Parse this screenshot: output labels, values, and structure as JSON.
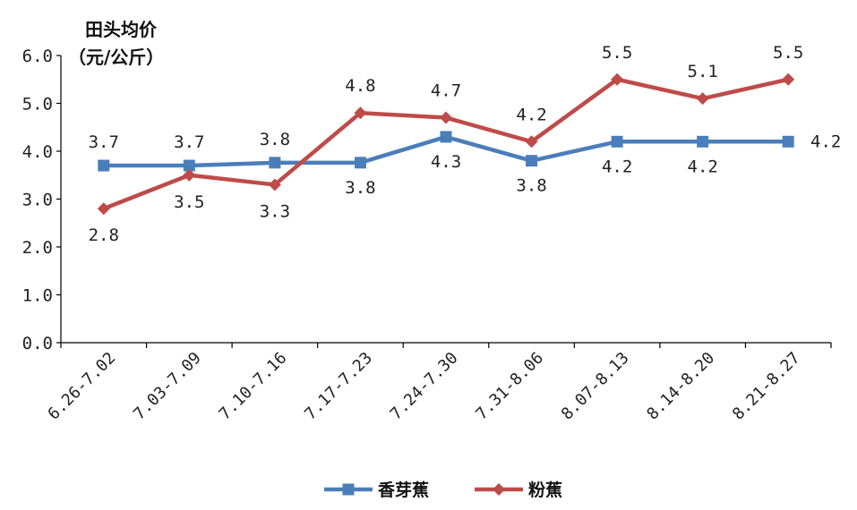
{
  "chart_data": {
    "type": "line",
    "ylabel_line1": "田头均价",
    "ylabel_line2": "（元/公斤）",
    "ylim": [
      0,
      6
    ],
    "yticks": [
      "0.0",
      "1.0",
      "2.0",
      "3.0",
      "4.0",
      "5.0",
      "6.0"
    ],
    "categories": [
      "6.26-7.02",
      "7.03-7.09",
      "7.10-7.16",
      "7.17-7.23",
      "7.24-7.30",
      "7.31-8.06",
      "8.07-8.13",
      "8.14-8.20",
      "8.21-8.27"
    ],
    "series": [
      {
        "name": "香芽蕉",
        "color": "#4a7ebb",
        "marker": "square",
        "values": [
          3.7,
          3.7,
          3.76,
          3.76,
          4.3,
          3.8,
          4.2,
          4.2,
          4.2
        ],
        "labels": [
          "3.7",
          "3.7",
          "3.8",
          "3.8",
          "4.3",
          "3.8",
          "4.2",
          "4.2",
          "4.2"
        ]
      },
      {
        "name": "粉蕉",
        "color": "#be4b48",
        "marker": "diamond",
        "values": [
          2.8,
          3.5,
          3.3,
          4.8,
          4.7,
          4.2,
          5.5,
          5.1,
          5.5
        ],
        "labels": [
          "2.8",
          "3.5",
          "3.3",
          "4.8",
          "4.7",
          "4.2",
          "5.5",
          "5.1",
          "5.5"
        ]
      }
    ],
    "grid": false,
    "legend_position": "bottom"
  }
}
